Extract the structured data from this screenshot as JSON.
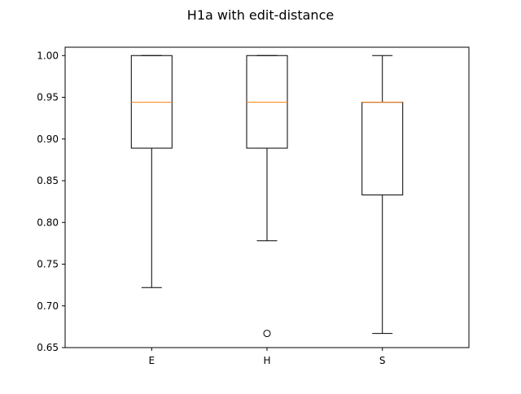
{
  "chart_data": {
    "type": "box",
    "title": "H1a with edit-distance",
    "xlabel": "",
    "ylabel": "",
    "categories": [
      "E",
      "H",
      "S"
    ],
    "ylim": [
      0.65,
      1.01
    ],
    "yticks": [
      0.65,
      0.7,
      0.75,
      0.8,
      0.85,
      0.9,
      0.95,
      1.0
    ],
    "ytick_labels": [
      "0.65",
      "0.70",
      "0.75",
      "0.80",
      "0.85",
      "0.90",
      "0.95",
      "1.00"
    ],
    "grid": false,
    "boxes": [
      {
        "label": "E",
        "whisker_low": 0.722,
        "q1": 0.889,
        "median": 0.944,
        "q3": 1.0,
        "whisker_high": 1.0,
        "outliers": []
      },
      {
        "label": "H",
        "whisker_low": 0.778,
        "q1": 0.889,
        "median": 0.944,
        "q3": 1.0,
        "whisker_high": 1.0,
        "outliers": [
          0.667
        ]
      },
      {
        "label": "S",
        "whisker_low": 0.667,
        "q1": 0.833,
        "median": 0.944,
        "q3": 0.944,
        "whisker_high": 1.0,
        "outliers": []
      }
    ],
    "colors": {
      "box": "#000000",
      "median": "#ff7f0e",
      "axes": "#000000"
    }
  }
}
